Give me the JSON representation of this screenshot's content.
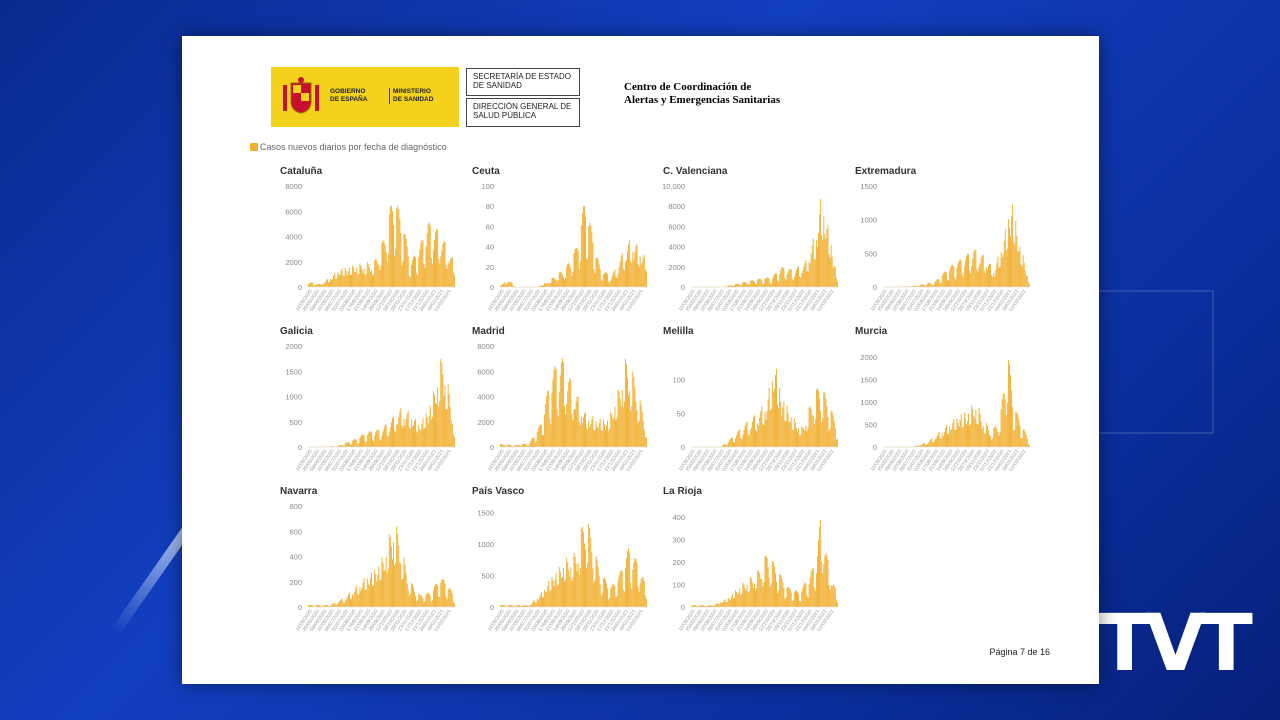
{
  "header": {
    "logo_left_text": [
      "GOBIERNO",
      "DE ESPAÑA"
    ],
    "logo_right_text": [
      "MINISTERIO",
      "DE SANIDAD"
    ],
    "box1": [
      "SECRETARÍA DE ESTADO",
      "DE SANIDAD"
    ],
    "box2": [
      "DIRECCIÓN GENERAL DE",
      "SALUD PÚBLICA"
    ],
    "title_line1": "Centro de Coordinación de",
    "title_line2": "Alertas y Emergencias Sanitarias"
  },
  "footer": {
    "page_label": "Página 7 de 16"
  },
  "colors": {
    "bar": "#f2b134",
    "accent": "#f4d21c"
  },
  "chart_data": [
    {
      "type": "bar",
      "title": "Cataluña",
      "legend": "Casos nuevos diarios por fecha de diagnóstico",
      "yticks": [
        "0",
        "2000",
        "4000",
        "6000",
        "8000"
      ],
      "ylim": [
        0,
        8000
      ],
      "xticks": [
        "11/05/2020",
        "25/05/2020",
        "08/06/2020",
        "22/06/2020",
        "06/07/2020",
        "20/07/2020",
        "03/08/2020",
        "17/08/2020",
        "31/08/2020",
        "14/09/2020",
        "28/09/2020",
        "12/10/2020",
        "26/10/2020",
        "09/11/2020",
        "23/11/2020",
        "07/12/2020",
        "21/12/2020",
        "04/01/2021",
        "18/01/2021",
        "01/02/2021"
      ],
      "profile": [
        [
          0,
          0.05
        ],
        [
          0.08,
          0.03
        ],
        [
          0.15,
          0.1
        ],
        [
          0.22,
          0.2
        ],
        [
          0.35,
          0.24
        ],
        [
          0.45,
          0.25
        ],
        [
          0.52,
          0.5
        ],
        [
          0.58,
          0.93
        ],
        [
          0.64,
          0.7
        ],
        [
          0.7,
          0.25
        ],
        [
          0.76,
          0.4
        ],
        [
          0.82,
          0.65
        ],
        [
          0.9,
          0.55
        ],
        [
          1,
          0.25
        ]
      ]
    },
    {
      "type": "bar",
      "title": "Ceuta",
      "yticks": [
        "0",
        "20",
        "40",
        "60",
        "80",
        "100"
      ],
      "ylim": [
        0,
        100
      ],
      "xticks": [
        "11/05/2020",
        "25/05/2020",
        "08/06/2020",
        "22/06/2020",
        "06/07/2020",
        "20/07/2020",
        "03/08/2020",
        "17/08/2020",
        "31/08/2020",
        "14/09/2020",
        "28/09/2020",
        "12/10/2020",
        "26/10/2020",
        "09/11/2020",
        "23/11/2020",
        "07/12/2020",
        "21/12/2020",
        "04/01/2021",
        "18/01/2021",
        "01/02/2021"
      ],
      "profile": [
        [
          0,
          0.02
        ],
        [
          0.06,
          0.08
        ],
        [
          0.1,
          0
        ],
        [
          0.25,
          0
        ],
        [
          0.32,
          0.05
        ],
        [
          0.45,
          0.2
        ],
        [
          0.52,
          0.4
        ],
        [
          0.58,
          0.9
        ],
        [
          0.62,
          0.6
        ],
        [
          0.68,
          0.2
        ],
        [
          0.76,
          0.1
        ],
        [
          0.84,
          0.35
        ],
        [
          0.9,
          0.5
        ],
        [
          1,
          0.3
        ]
      ]
    },
    {
      "type": "bar",
      "title": "C. Valenciana",
      "yticks": [
        "0",
        "2000",
        "4000",
        "6000",
        "8000",
        "10,000"
      ],
      "ylim": [
        0,
        10000
      ],
      "xticks": [
        "11/05/2020",
        "25/05/2020",
        "08/06/2020",
        "22/06/2020",
        "06/07/2020",
        "20/07/2020",
        "03/08/2020",
        "17/08/2020",
        "31/08/2020",
        "14/09/2020",
        "28/09/2020",
        "12/10/2020",
        "26/10/2020",
        "09/11/2020",
        "23/11/2020",
        "07/12/2020",
        "21/12/2020",
        "04/01/2021",
        "18/01/2021",
        "01/02/2021"
      ],
      "profile": [
        [
          0,
          0
        ],
        [
          0.2,
          0
        ],
        [
          0.3,
          0.03
        ],
        [
          0.45,
          0.08
        ],
        [
          0.55,
          0.1
        ],
        [
          0.62,
          0.2
        ],
        [
          0.7,
          0.17
        ],
        [
          0.78,
          0.25
        ],
        [
          0.85,
          0.55
        ],
        [
          0.89,
          0.95
        ],
        [
          0.93,
          0.7
        ],
        [
          1,
          0.1
        ]
      ]
    },
    {
      "type": "bar",
      "title": "Extremadura",
      "yticks": [
        "0",
        "500",
        "1000",
        "1500"
      ],
      "ylim": [
        0,
        1500
      ],
      "xticks": [
        "11/05/2020",
        "25/05/2020",
        "08/06/2020",
        "22/06/2020",
        "06/07/2020",
        "20/07/2020",
        "03/08/2020",
        "17/08/2020",
        "31/08/2020",
        "14/09/2020",
        "28/09/2020",
        "12/10/2020",
        "26/10/2020",
        "09/11/2020",
        "23/11/2020",
        "07/12/2020",
        "21/12/2020",
        "04/01/2021",
        "18/01/2021",
        "01/02/2021"
      ],
      "profile": [
        [
          0,
          0
        ],
        [
          0.2,
          0.01
        ],
        [
          0.35,
          0.05
        ],
        [
          0.45,
          0.2
        ],
        [
          0.55,
          0.3
        ],
        [
          0.62,
          0.38
        ],
        [
          0.7,
          0.3
        ],
        [
          0.76,
          0.18
        ],
        [
          0.82,
          0.5
        ],
        [
          0.88,
          0.95
        ],
        [
          0.93,
          0.5
        ],
        [
          1,
          0.05
        ]
      ]
    },
    {
      "type": "bar",
      "title": "Galicia",
      "yticks": [
        "0",
        "500",
        "1000",
        "1500",
        "2000"
      ],
      "ylim": [
        0,
        2000
      ],
      "xticks": [
        "11/05/2020",
        "25/05/2020",
        "08/06/2020",
        "22/06/2020",
        "06/07/2020",
        "20/07/2020",
        "03/08/2020",
        "17/08/2020",
        "31/08/2020",
        "14/09/2020",
        "28/09/2020",
        "12/10/2020",
        "26/10/2020",
        "09/11/2020",
        "23/11/2020",
        "07/12/2020",
        "21/12/2020",
        "04/01/2021",
        "18/01/2021",
        "01/02/2021"
      ],
      "profile": [
        [
          0,
          0
        ],
        [
          0.2,
          0.01
        ],
        [
          0.32,
          0.08
        ],
        [
          0.4,
          0.15
        ],
        [
          0.5,
          0.18
        ],
        [
          0.58,
          0.3
        ],
        [
          0.64,
          0.4
        ],
        [
          0.7,
          0.35
        ],
        [
          0.76,
          0.25
        ],
        [
          0.82,
          0.4
        ],
        [
          0.88,
          0.7
        ],
        [
          0.92,
          0.98
        ],
        [
          0.96,
          0.6
        ],
        [
          1,
          0.2
        ]
      ]
    },
    {
      "type": "bar",
      "title": "Madrid",
      "yticks": [
        "0",
        "2000",
        "4000",
        "6000",
        "8000"
      ],
      "ylim": [
        0,
        8000
      ],
      "xticks": [
        "11/05/2020",
        "25/05/2020",
        "08/06/2020",
        "22/06/2020",
        "06/07/2020",
        "20/07/2020",
        "03/08/2020",
        "17/08/2020",
        "31/08/2020",
        "14/09/2020",
        "28/09/2020",
        "12/10/2020",
        "26/10/2020",
        "09/11/2020",
        "23/11/2020",
        "07/12/2020",
        "21/12/2020",
        "04/01/2021",
        "18/01/2021",
        "01/02/2021"
      ],
      "profile": [
        [
          0,
          0.03
        ],
        [
          0.1,
          0.02
        ],
        [
          0.2,
          0.04
        ],
        [
          0.28,
          0.25
        ],
        [
          0.35,
          0.75
        ],
        [
          0.42,
          0.9
        ],
        [
          0.5,
          0.6
        ],
        [
          0.58,
          0.35
        ],
        [
          0.66,
          0.3
        ],
        [
          0.74,
          0.3
        ],
        [
          0.8,
          0.55
        ],
        [
          0.86,
          0.9
        ],
        [
          0.92,
          0.7
        ],
        [
          1,
          0.2
        ]
      ]
    },
    {
      "type": "bar",
      "title": "Melilla",
      "yticks": [
        "0",
        "50",
        "100"
      ],
      "ylim": [
        0,
        150
      ],
      "xticks": [
        "11/05/2020",
        "25/05/2020",
        "08/06/2020",
        "22/06/2020",
        "06/07/2020",
        "20/07/2020",
        "03/08/2020",
        "17/08/2020",
        "31/08/2020",
        "14/09/2020",
        "28/09/2020",
        "12/10/2020",
        "26/10/2020",
        "09/11/2020",
        "23/11/2020",
        "07/12/2020",
        "21/12/2020",
        "04/01/2021",
        "18/01/2021",
        "01/02/2021"
      ],
      "profile": [
        [
          0,
          0
        ],
        [
          0.2,
          0
        ],
        [
          0.28,
          0.1
        ],
        [
          0.38,
          0.25
        ],
        [
          0.46,
          0.35
        ],
        [
          0.52,
          0.5
        ],
        [
          0.57,
          0.92
        ],
        [
          0.62,
          0.55
        ],
        [
          0.7,
          0.3
        ],
        [
          0.76,
          0.2
        ],
        [
          0.82,
          0.45
        ],
        [
          0.88,
          0.65
        ],
        [
          0.94,
          0.45
        ],
        [
          1,
          0.2
        ]
      ]
    },
    {
      "type": "bar",
      "title": "Murcia",
      "yticks": [
        "0",
        "500",
        "1000",
        "1500",
        "2000"
      ],
      "ylim": [
        0,
        2250
      ],
      "xticks": [
        "11/05/2020",
        "25/05/2020",
        "08/06/2020",
        "22/06/2020",
        "06/07/2020",
        "20/07/2020",
        "03/08/2020",
        "17/08/2020",
        "31/08/2020",
        "14/09/2020",
        "28/09/2020",
        "12/10/2020",
        "26/10/2020",
        "09/11/2020",
        "23/11/2020",
        "07/12/2020",
        "21/12/2020",
        "04/01/2021",
        "18/01/2021",
        "01/02/2021"
      ],
      "profile": [
        [
          0,
          0
        ],
        [
          0.2,
          0
        ],
        [
          0.3,
          0.05
        ],
        [
          0.38,
          0.15
        ],
        [
          0.45,
          0.25
        ],
        [
          0.52,
          0.35
        ],
        [
          0.58,
          0.38
        ],
        [
          0.63,
          0.48
        ],
        [
          0.68,
          0.3
        ],
        [
          0.74,
          0.15
        ],
        [
          0.8,
          0.3
        ],
        [
          0.85,
          0.97
        ],
        [
          0.9,
          0.4
        ],
        [
          1,
          0.05
        ]
      ]
    },
    {
      "type": "bar",
      "title": "Navarra",
      "yticks": [
        "0",
        "200",
        "400",
        "600",
        "800"
      ],
      "ylim": [
        0,
        800
      ],
      "xticks": [
        "11/05/2020",
        "25/05/2020",
        "08/06/2020",
        "22/06/2020",
        "06/07/2020",
        "20/07/2020",
        "03/08/2020",
        "17/08/2020",
        "31/08/2020",
        "14/09/2020",
        "28/09/2020",
        "12/10/2020",
        "26/10/2020",
        "09/11/2020",
        "23/11/2020",
        "07/12/2020",
        "21/12/2020",
        "04/01/2021",
        "18/01/2021",
        "01/02/2021"
      ],
      "profile": [
        [
          0,
          0.02
        ],
        [
          0.15,
          0.02
        ],
        [
          0.25,
          0.1
        ],
        [
          0.35,
          0.25
        ],
        [
          0.45,
          0.4
        ],
        [
          0.52,
          0.55
        ],
        [
          0.58,
          0.88
        ],
        [
          0.62,
          0.75
        ],
        [
          0.68,
          0.3
        ],
        [
          0.76,
          0.12
        ],
        [
          0.84,
          0.15
        ],
        [
          0.9,
          0.3
        ],
        [
          0.95,
          0.25
        ],
        [
          1,
          0.1
        ]
      ]
    },
    {
      "type": "bar",
      "title": "País Vasco",
      "yticks": [
        "0",
        "500",
        "1000",
        "1500"
      ],
      "ylim": [
        0,
        1600
      ],
      "xticks": [
        "11/05/2020",
        "25/05/2020",
        "08/06/2020",
        "22/06/2020",
        "06/07/2020",
        "20/07/2020",
        "03/08/2020",
        "17/08/2020",
        "31/08/2020",
        "14/09/2020",
        "28/09/2020",
        "12/10/2020",
        "26/10/2020",
        "09/11/2020",
        "23/11/2020",
        "07/12/2020",
        "21/12/2020",
        "04/01/2021",
        "18/01/2021",
        "01/02/2021"
      ],
      "profile": [
        [
          0,
          0.02
        ],
        [
          0.2,
          0.02
        ],
        [
          0.28,
          0.15
        ],
        [
          0.36,
          0.35
        ],
        [
          0.45,
          0.5
        ],
        [
          0.52,
          0.55
        ],
        [
          0.58,
          0.95
        ],
        [
          0.62,
          0.75
        ],
        [
          0.68,
          0.35
        ],
        [
          0.76,
          0.2
        ],
        [
          0.82,
          0.35
        ],
        [
          0.88,
          0.6
        ],
        [
          0.94,
          0.45
        ],
        [
          1,
          0.2
        ]
      ]
    },
    {
      "type": "bar",
      "title": "La Rioja",
      "yticks": [
        "0",
        "100",
        "200",
        "300",
        "400"
      ],
      "ylim": [
        0,
        450
      ],
      "xticks": [
        "11/05/2020",
        "25/05/2020",
        "08/06/2020",
        "22/06/2020",
        "06/07/2020",
        "20/07/2020",
        "03/08/2020",
        "17/08/2020",
        "31/08/2020",
        "14/09/2020",
        "28/09/2020",
        "12/10/2020",
        "26/10/2020",
        "09/11/2020",
        "23/11/2020",
        "07/12/2020",
        "21/12/2020",
        "04/01/2021",
        "18/01/2021",
        "01/02/2021"
      ],
      "profile": [
        [
          0,
          0.02
        ],
        [
          0.15,
          0.02
        ],
        [
          0.25,
          0.1
        ],
        [
          0.35,
          0.25
        ],
        [
          0.45,
          0.35
        ],
        [
          0.52,
          0.55
        ],
        [
          0.58,
          0.4
        ],
        [
          0.66,
          0.2
        ],
        [
          0.74,
          0.15
        ],
        [
          0.8,
          0.3
        ],
        [
          0.85,
          0.45
        ],
        [
          0.89,
          0.95
        ],
        [
          0.93,
          0.5
        ],
        [
          1,
          0.1
        ]
      ]
    }
  ]
}
